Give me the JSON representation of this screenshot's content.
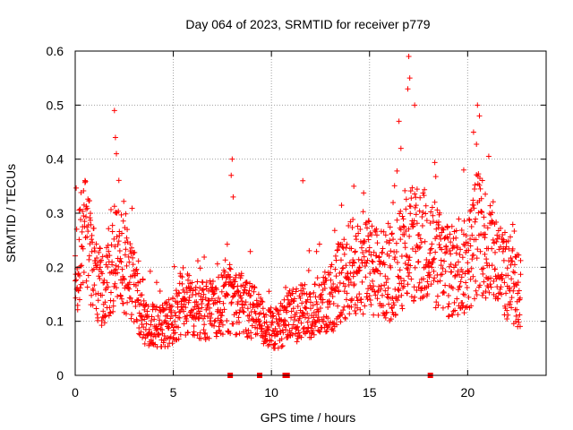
{
  "chart_data": {
    "type": "scatter",
    "title": "Day 064 of 2023, SRMTID for receiver p779",
    "xlabel": "GPS time / hours",
    "ylabel": "SRMTID / TECUs",
    "xlim": [
      0,
      24
    ],
    "ylim": [
      0,
      0.6
    ],
    "x_ticks": [
      0,
      5,
      10,
      15,
      20
    ],
    "x_tick_labels": [
      "0",
      "5",
      "10",
      "15",
      "20"
    ],
    "y_ticks": [
      0,
      0.1,
      0.2,
      0.3,
      0.4,
      0.5,
      0.6
    ],
    "y_tick_labels": [
      "0",
      "0.1",
      "0.2",
      "0.3",
      "0.4",
      "0.5",
      "0.6"
    ],
    "grid": true,
    "marker": "+",
    "color": "#ff0000",
    "zero_markers": [
      7.9,
      9.4,
      10.7,
      10.8,
      18.1
    ],
    "series_profile": [
      {
        "x": 0.0,
        "y": 0.2
      },
      {
        "x": 0.5,
        "y": 0.26
      },
      {
        "x": 1.0,
        "y": 0.18
      },
      {
        "x": 1.5,
        "y": 0.15
      },
      {
        "x": 2.0,
        "y": 0.22
      },
      {
        "x": 2.5,
        "y": 0.2
      },
      {
        "x": 3.0,
        "y": 0.16
      },
      {
        "x": 3.5,
        "y": 0.1
      },
      {
        "x": 4.0,
        "y": 0.09
      },
      {
        "x": 5.0,
        "y": 0.1
      },
      {
        "x": 5.5,
        "y": 0.14
      },
      {
        "x": 6.0,
        "y": 0.12
      },
      {
        "x": 7.0,
        "y": 0.12
      },
      {
        "x": 8.0,
        "y": 0.14
      },
      {
        "x": 9.0,
        "y": 0.12
      },
      {
        "x": 10.0,
        "y": 0.08
      },
      {
        "x": 11.0,
        "y": 0.11
      },
      {
        "x": 12.0,
        "y": 0.12
      },
      {
        "x": 13.0,
        "y": 0.14
      },
      {
        "x": 14.0,
        "y": 0.2
      },
      {
        "x": 15.0,
        "y": 0.2
      },
      {
        "x": 16.0,
        "y": 0.18
      },
      {
        "x": 17.0,
        "y": 0.24
      },
      {
        "x": 18.0,
        "y": 0.24
      },
      {
        "x": 19.0,
        "y": 0.19
      },
      {
        "x": 20.0,
        "y": 0.2
      },
      {
        "x": 20.5,
        "y": 0.27
      },
      {
        "x": 21.0,
        "y": 0.24
      },
      {
        "x": 22.0,
        "y": 0.18
      },
      {
        "x": 22.7,
        "y": 0.15
      }
    ],
    "spikes": [
      {
        "x": 2.0,
        "y": 0.49
      },
      {
        "x": 2.05,
        "y": 0.44
      },
      {
        "x": 2.1,
        "y": 0.41
      },
      {
        "x": 8.0,
        "y": 0.4
      },
      {
        "x": 7.95,
        "y": 0.37
      },
      {
        "x": 8.05,
        "y": 0.33
      },
      {
        "x": 11.6,
        "y": 0.36
      },
      {
        "x": 17.0,
        "y": 0.59
      },
      {
        "x": 17.05,
        "y": 0.55
      },
      {
        "x": 16.95,
        "y": 0.53
      },
      {
        "x": 17.3,
        "y": 0.5
      },
      {
        "x": 20.5,
        "y": 0.5
      },
      {
        "x": 20.6,
        "y": 0.48
      },
      {
        "x": 20.3,
        "y": 0.45
      },
      {
        "x": 16.5,
        "y": 0.47
      },
      {
        "x": 16.6,
        "y": 0.42
      },
      {
        "x": 19.8,
        "y": 0.38
      },
      {
        "x": 14.2,
        "y": 0.35
      }
    ]
  }
}
